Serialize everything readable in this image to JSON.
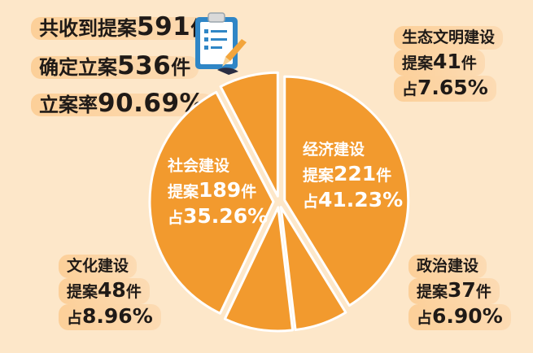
{
  "summary": {
    "received_prefix": "共收到提案",
    "received_value": "591",
    "received_suffix": "件",
    "filed_prefix": "确定立案",
    "filed_value": "536",
    "filed_suffix": "件",
    "rate_prefix": "立案率",
    "rate_value": "90.69%"
  },
  "labels": {
    "ecology": {
      "name": "生态文明建设",
      "count_prefix": "提案",
      "count": "41",
      "unit": "件",
      "pct_prefix": "占",
      "pct": "7.65%"
    },
    "economy": {
      "name": "经济建设",
      "count_prefix": "提案",
      "count": "221",
      "unit": "件",
      "pct_prefix": "占",
      "pct": "41.23%"
    },
    "society": {
      "name": "社会建设",
      "count_prefix": "提案",
      "count": "189",
      "unit": "件",
      "pct_prefix": "占",
      "pct": "35.26%"
    },
    "culture": {
      "name": "文化建设",
      "count_prefix": "提案",
      "count": "48",
      "unit": "件",
      "pct_prefix": "占",
      "pct": "8.96%"
    },
    "politics": {
      "name": "政治建设",
      "count_prefix": "提案",
      "count": "37",
      "unit": "件",
      "pct_prefix": "占",
      "pct": "6.90%"
    }
  },
  "chart_data": {
    "type": "pie",
    "title": "",
    "start_angle_deg": 0,
    "slices": [
      {
        "label": "经济建设",
        "value": 221,
        "percent": 41.23,
        "color": "#f29a2e"
      },
      {
        "label": "政治建设",
        "value": 37,
        "percent": 6.9,
        "color": "#f29a2e"
      },
      {
        "label": "文化建设",
        "value": 48,
        "percent": 8.96,
        "color": "#f29a2e"
      },
      {
        "label": "社会建设",
        "value": 189,
        "percent": 35.26,
        "color": "#f29a2e"
      },
      {
        "label": "生态文明建设",
        "value": 41,
        "percent": 7.65,
        "color": "#f29a2e"
      }
    ]
  },
  "colors": {
    "background": "#fde7c9",
    "slice": "#f29a2e",
    "text_dark": "#1f1a17",
    "text_light": "#ffffff",
    "highlight": "#fcce96"
  },
  "icon": "clipboard-checklist-icon"
}
